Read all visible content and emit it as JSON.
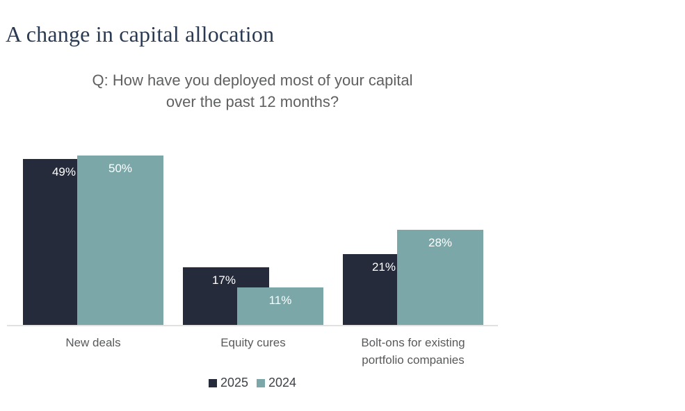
{
  "page": {
    "title": "A change in capital allocation",
    "question": {
      "line1": "Q: How have you deployed most of your capital",
      "line2": "over the past 12 months?"
    }
  },
  "chart_data": {
    "type": "bar",
    "title": "Q: How have you deployed most of your capital over the past 12 months?",
    "categories": [
      "New deals",
      "Equity cures",
      "Bolt-ons for existing portfolio companies"
    ],
    "series": [
      {
        "name": "2025",
        "color": "#252b3b",
        "values": [
          49,
          17,
          21
        ]
      },
      {
        "name": "2024",
        "color": "#7ba7a9",
        "values": [
          50,
          11,
          28
        ]
      }
    ],
    "value_suffix": "%",
    "value_label_style": "inside-top-white",
    "bar_style": "overlapping",
    "ylim": [
      0,
      50
    ],
    "grid": false,
    "legend_position": "bottom-center"
  },
  "colors": {
    "title_text": "#2b3a53",
    "question_text": "#5f6061",
    "category_text": "#58595a",
    "legend_text": "#3d4146",
    "axis_line": "#e1e1e1",
    "background": "#ffffff"
  }
}
